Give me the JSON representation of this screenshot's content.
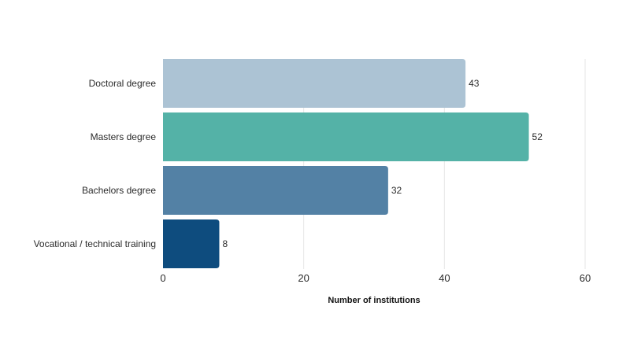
{
  "chart_data": {
    "type": "bar",
    "orientation": "horizontal",
    "title": "",
    "xlabel": "Number of institutions",
    "ylabel": "",
    "xlim": [
      0,
      60
    ],
    "xticks": [
      0,
      20,
      40,
      60
    ],
    "grid": true,
    "legend": "none",
    "categories": [
      "Doctoral degree",
      "Masters degree",
      "Bachelors degree",
      "Vocational / technical training"
    ],
    "values": [
      43,
      52,
      32,
      8
    ],
    "colors": [
      "#acc3d4",
      "#54b2a7",
      "#5381a5",
      "#0e4c7e"
    ]
  }
}
